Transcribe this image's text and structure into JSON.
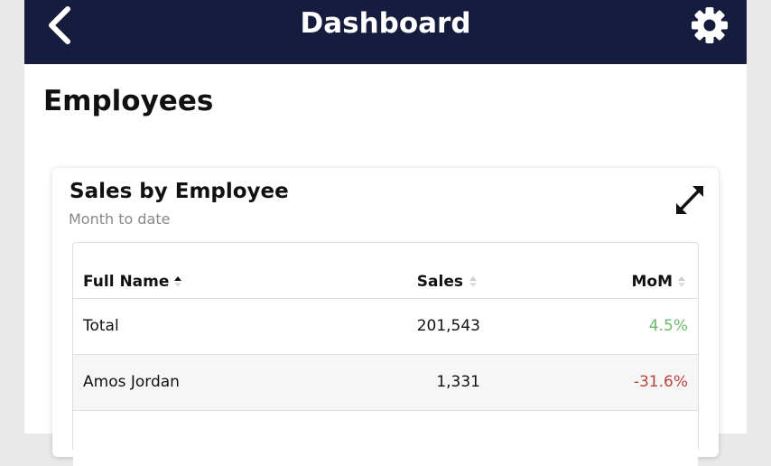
{
  "header": {
    "title": "Dashboard"
  },
  "page": {
    "title": "Employees"
  },
  "card": {
    "title": "Sales by Employee",
    "subtitle": "Month to date",
    "table": {
      "columns": [
        "Full Name",
        "Sales",
        "MoM"
      ],
      "rows": [
        [
          "Total",
          "201,543",
          "4.5%"
        ],
        [
          "Amos Jordan",
          "1,331",
          "-31.6%"
        ]
      ]
    }
  }
}
